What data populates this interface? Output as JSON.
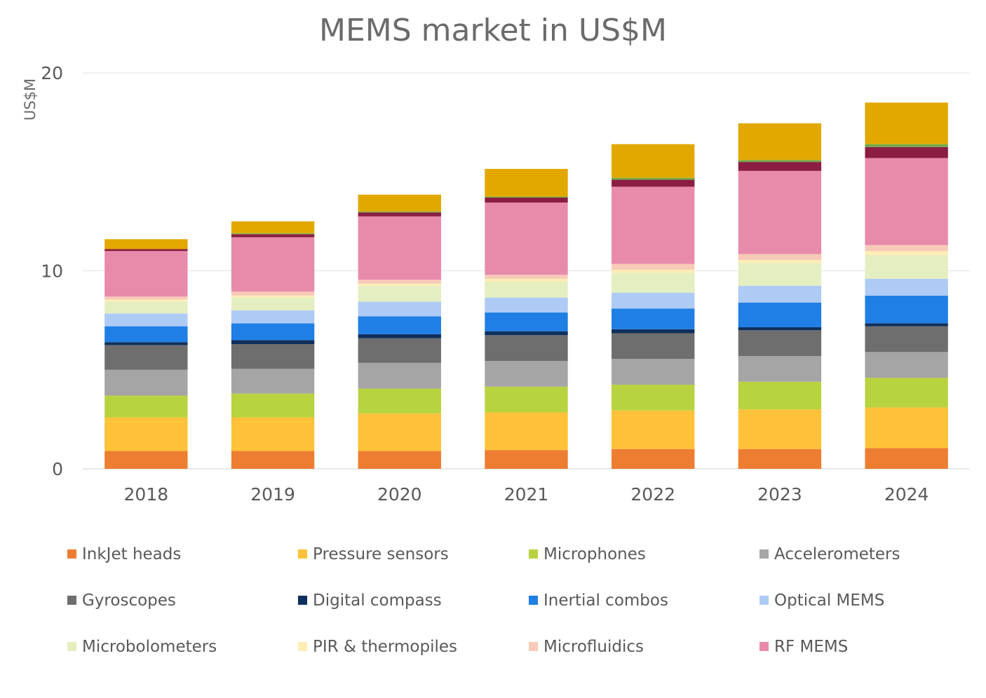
{
  "chart_data": {
    "type": "bar",
    "stacked": true,
    "title": "MEMS market in US$M",
    "ylabel": "US$M",
    "xlabel": "",
    "ylim": [
      0,
      20
    ],
    "yticks": [
      0,
      10,
      20
    ],
    "grid": true,
    "legend_position": "bottom",
    "categories": [
      "2018",
      "2019",
      "2020",
      "2021",
      "2022",
      "2023",
      "2024"
    ],
    "series": [
      {
        "name": "InkJet heads",
        "color": "#ED7D31",
        "values": [
          0.9,
          0.9,
          0.9,
          0.95,
          1.0,
          1.0,
          1.05
        ]
      },
      {
        "name": "Pressure sensors",
        "color": "#FFC238",
        "values": [
          1.7,
          1.7,
          1.9,
          1.9,
          1.95,
          2.0,
          2.05
        ]
      },
      {
        "name": "Microphones",
        "color": "#B8D340",
        "values": [
          1.1,
          1.2,
          1.25,
          1.3,
          1.3,
          1.4,
          1.5
        ]
      },
      {
        "name": "Accelerometers",
        "color": "#A5A5A5",
        "values": [
          1.3,
          1.25,
          1.3,
          1.3,
          1.3,
          1.3,
          1.3
        ]
      },
      {
        "name": "Gyroscopes",
        "color": "#6E6E6E",
        "values": [
          1.25,
          1.25,
          1.25,
          1.3,
          1.3,
          1.3,
          1.3
        ]
      },
      {
        "name": "Digital compass",
        "color": "#0F2F5C",
        "values": [
          0.15,
          0.2,
          0.2,
          0.2,
          0.2,
          0.15,
          0.15
        ]
      },
      {
        "name": "Inertial combos",
        "color": "#1F7FE5",
        "values": [
          0.8,
          0.85,
          0.9,
          0.95,
          1.05,
          1.25,
          1.4
        ]
      },
      {
        "name": "Optical MEMS",
        "color": "#AECBF5",
        "values": [
          0.65,
          0.65,
          0.75,
          0.75,
          0.8,
          0.85,
          0.85
        ]
      },
      {
        "name": "Microbolometers",
        "color": "#E4EEC0",
        "values": [
          0.6,
          0.65,
          0.8,
          0.8,
          1.0,
          1.15,
          1.2
        ]
      },
      {
        "name": "PIR & thermopiles",
        "color": "#FFEDB5",
        "values": [
          0.1,
          0.1,
          0.1,
          0.15,
          0.15,
          0.15,
          0.2
        ]
      },
      {
        "name": "Microfluidics",
        "color": "#F7CBB7",
        "values": [
          0.15,
          0.2,
          0.2,
          0.2,
          0.3,
          0.3,
          0.3
        ]
      },
      {
        "name": "RF MEMS",
        "color": "#E88BAB",
        "values": [
          2.3,
          2.75,
          3.2,
          3.65,
          3.9,
          4.2,
          4.4
        ]
      },
      {
        "name": "",
        "color": "#8B1D42",
        "values": [
          0.1,
          0.15,
          0.2,
          0.25,
          0.35,
          0.45,
          0.55
        ]
      },
      {
        "name": "",
        "color": "#72A84A",
        "values": [
          0.0,
          0.05,
          0.05,
          0.05,
          0.1,
          0.1,
          0.15
        ]
      },
      {
        "name": "",
        "color": "#E2A800",
        "values": [
          0.5,
          0.6,
          0.85,
          1.4,
          1.7,
          1.85,
          2.1
        ]
      }
    ]
  }
}
